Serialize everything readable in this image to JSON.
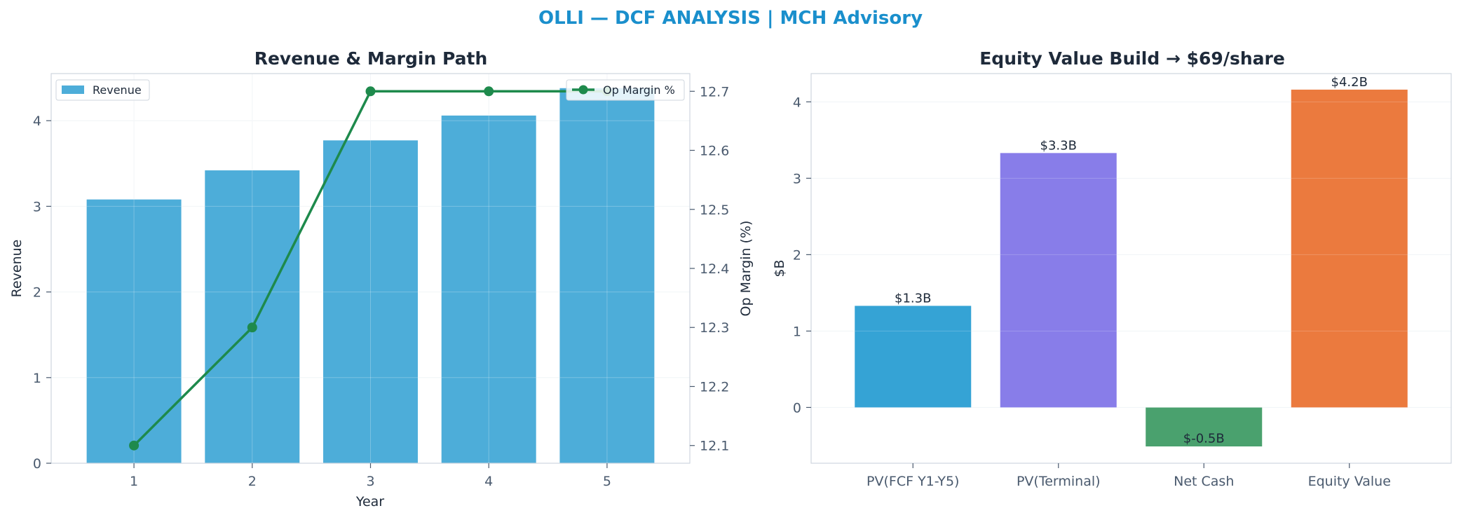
{
  "page_title": "OLLI — DCF ANALYSIS | MCH Advisory",
  "colors": {
    "title": "#1a8fcc",
    "panel_title": "#1e2a3a",
    "axis_text": "#4a5a6e",
    "revenue_bar": "#4dadd9",
    "margin_line": "#1e8a4c",
    "grid": "#eef2f6"
  },
  "chart_data": [
    {
      "type": "bar",
      "title": "Revenue & Margin Path",
      "xlabel": "Year",
      "ylabel": "Revenue",
      "y2label": "Op Margin (%)",
      "categories": [
        "1",
        "2",
        "3",
        "4",
        "5"
      ],
      "ylim": [
        0,
        4.55
      ],
      "y2lim": [
        12.07,
        12.73
      ],
      "yticks": [
        "0",
        "1",
        "2",
        "3",
        "4"
      ],
      "y2ticks": [
        "12.1",
        "12.2",
        "12.3",
        "12.4",
        "12.5",
        "12.6",
        "12.7"
      ],
      "grid": true,
      "series": [
        {
          "name": "Revenue",
          "type": "bar",
          "axis": "left",
          "color": "#4dadd9",
          "values": [
            3.08,
            3.42,
            3.77,
            4.06,
            4.38
          ]
        },
        {
          "name": "Op Margin %",
          "type": "line",
          "axis": "right",
          "color": "#1e8a4c",
          "values": [
            12.1,
            12.3,
            12.7,
            12.7,
            12.7
          ]
        }
      ],
      "legend": [
        "top-left",
        "top-right"
      ]
    },
    {
      "type": "bar",
      "title": "Equity Value Build → $69/share",
      "xlabel": "",
      "ylabel": "$B",
      "categories": [
        "PV(FCF Y1-Y5)",
        "PV(Terminal)",
        "Net Cash",
        "Equity Value"
      ],
      "values": [
        1.33,
        3.33,
        -0.51,
        4.16
      ],
      "data_labels": [
        "$1.3B",
        "$3.3B",
        "$-0.5B",
        "$4.2B"
      ],
      "colors": [
        "#35a3d5",
        "#887de9",
        "#4aa16e",
        "#eb7a3e"
      ],
      "ylim": [
        -0.73,
        4.37
      ],
      "yticks": [
        "0",
        "1",
        "2",
        "3",
        "4"
      ],
      "grid": true
    }
  ]
}
